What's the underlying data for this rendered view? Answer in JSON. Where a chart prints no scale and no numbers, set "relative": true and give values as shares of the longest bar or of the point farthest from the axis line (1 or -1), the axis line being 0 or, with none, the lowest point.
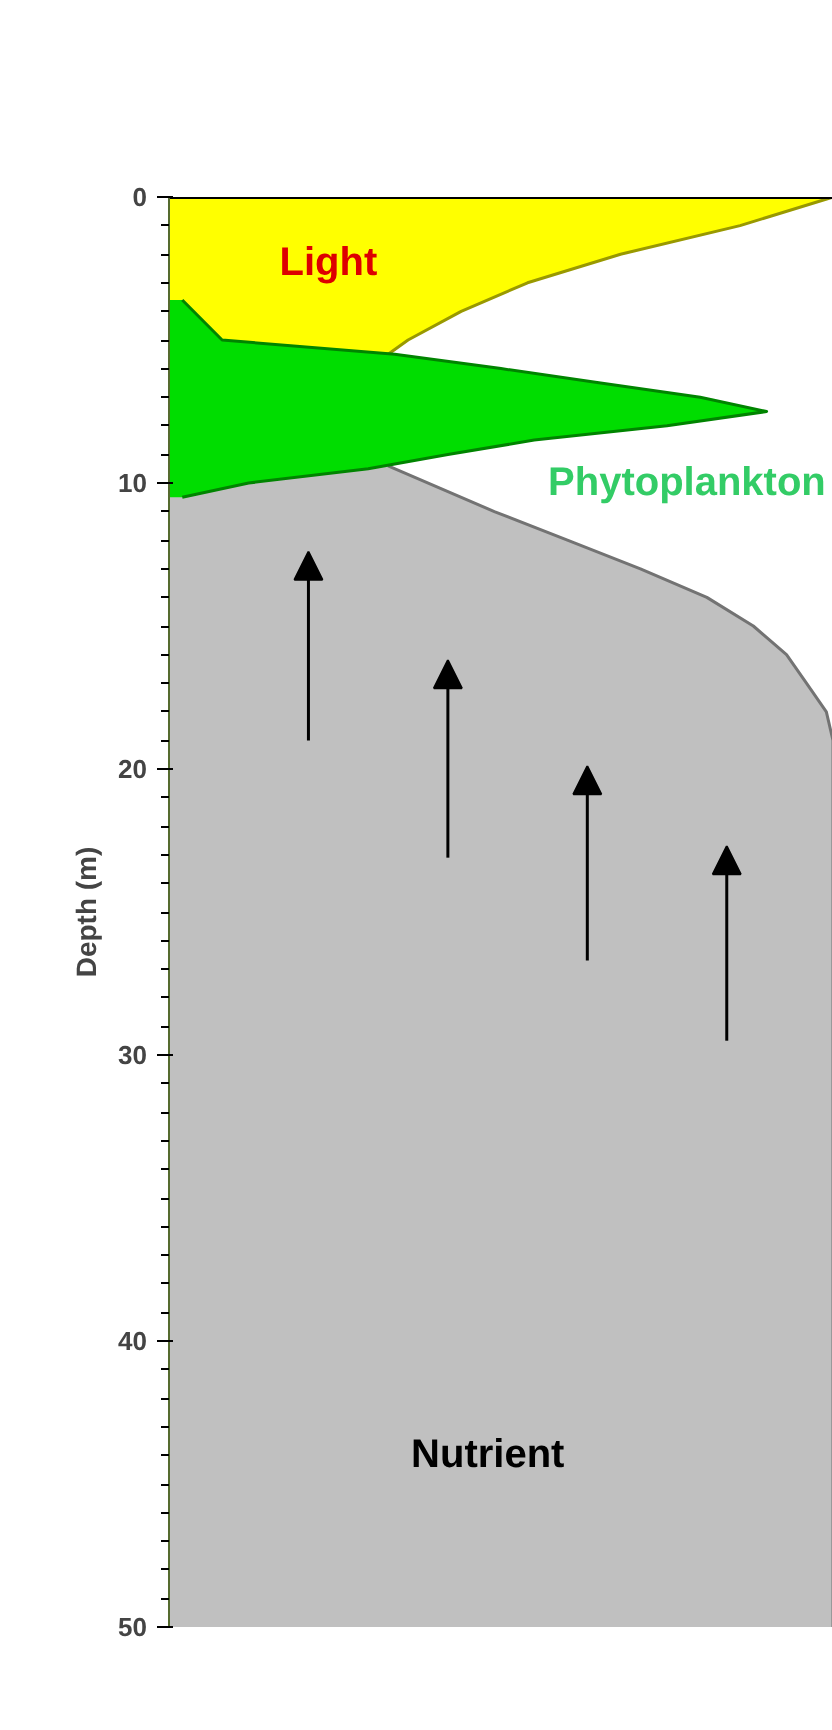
{
  "chart_data": {
    "type": "area",
    "orientation": "horizontal",
    "relative": true,
    "ylabel": "Depth (m)",
    "ylim": [
      50,
      0
    ],
    "yticks": [
      0,
      10,
      20,
      30,
      40,
      50
    ],
    "tick_labels": "y",
    "grid": false,
    "series": [
      {
        "color": "#c0c0c0",
        "x": [
          9.4,
          11,
          12,
          13,
          14,
          15,
          16,
          17,
          18,
          19,
          50
        ],
        "values": [
          0.33,
          0.49,
          0.6,
          0.71,
          0.81,
          0.88,
          0.93,
          0.96,
          0.99,
          1.0,
          1.0
        ]
      },
      {
        "color": "#ffff00",
        "x": [
          0,
          1,
          2,
          3,
          4,
          5,
          5.5
        ],
        "values": [
          1.0,
          0.86,
          0.68,
          0.54,
          0.44,
          0.36,
          0.33
        ]
      },
      {
        "color": "#00dd00",
        "x": [
          3.6,
          5,
          5.5,
          6,
          6.5,
          7,
          7.5,
          8,
          8.5,
          9,
          9.5,
          10,
          10.5
        ],
        "values": [
          0.02,
          0.08,
          0.34,
          0.5,
          0.65,
          0.8,
          0.9,
          0.75,
          0.55,
          0.42,
          0.3,
          0.12,
          0.02
        ]
      }
    ],
    "annotations": [
      "Light",
      "Phytoplankton",
      "Nutrient"
    ]
  }
}
